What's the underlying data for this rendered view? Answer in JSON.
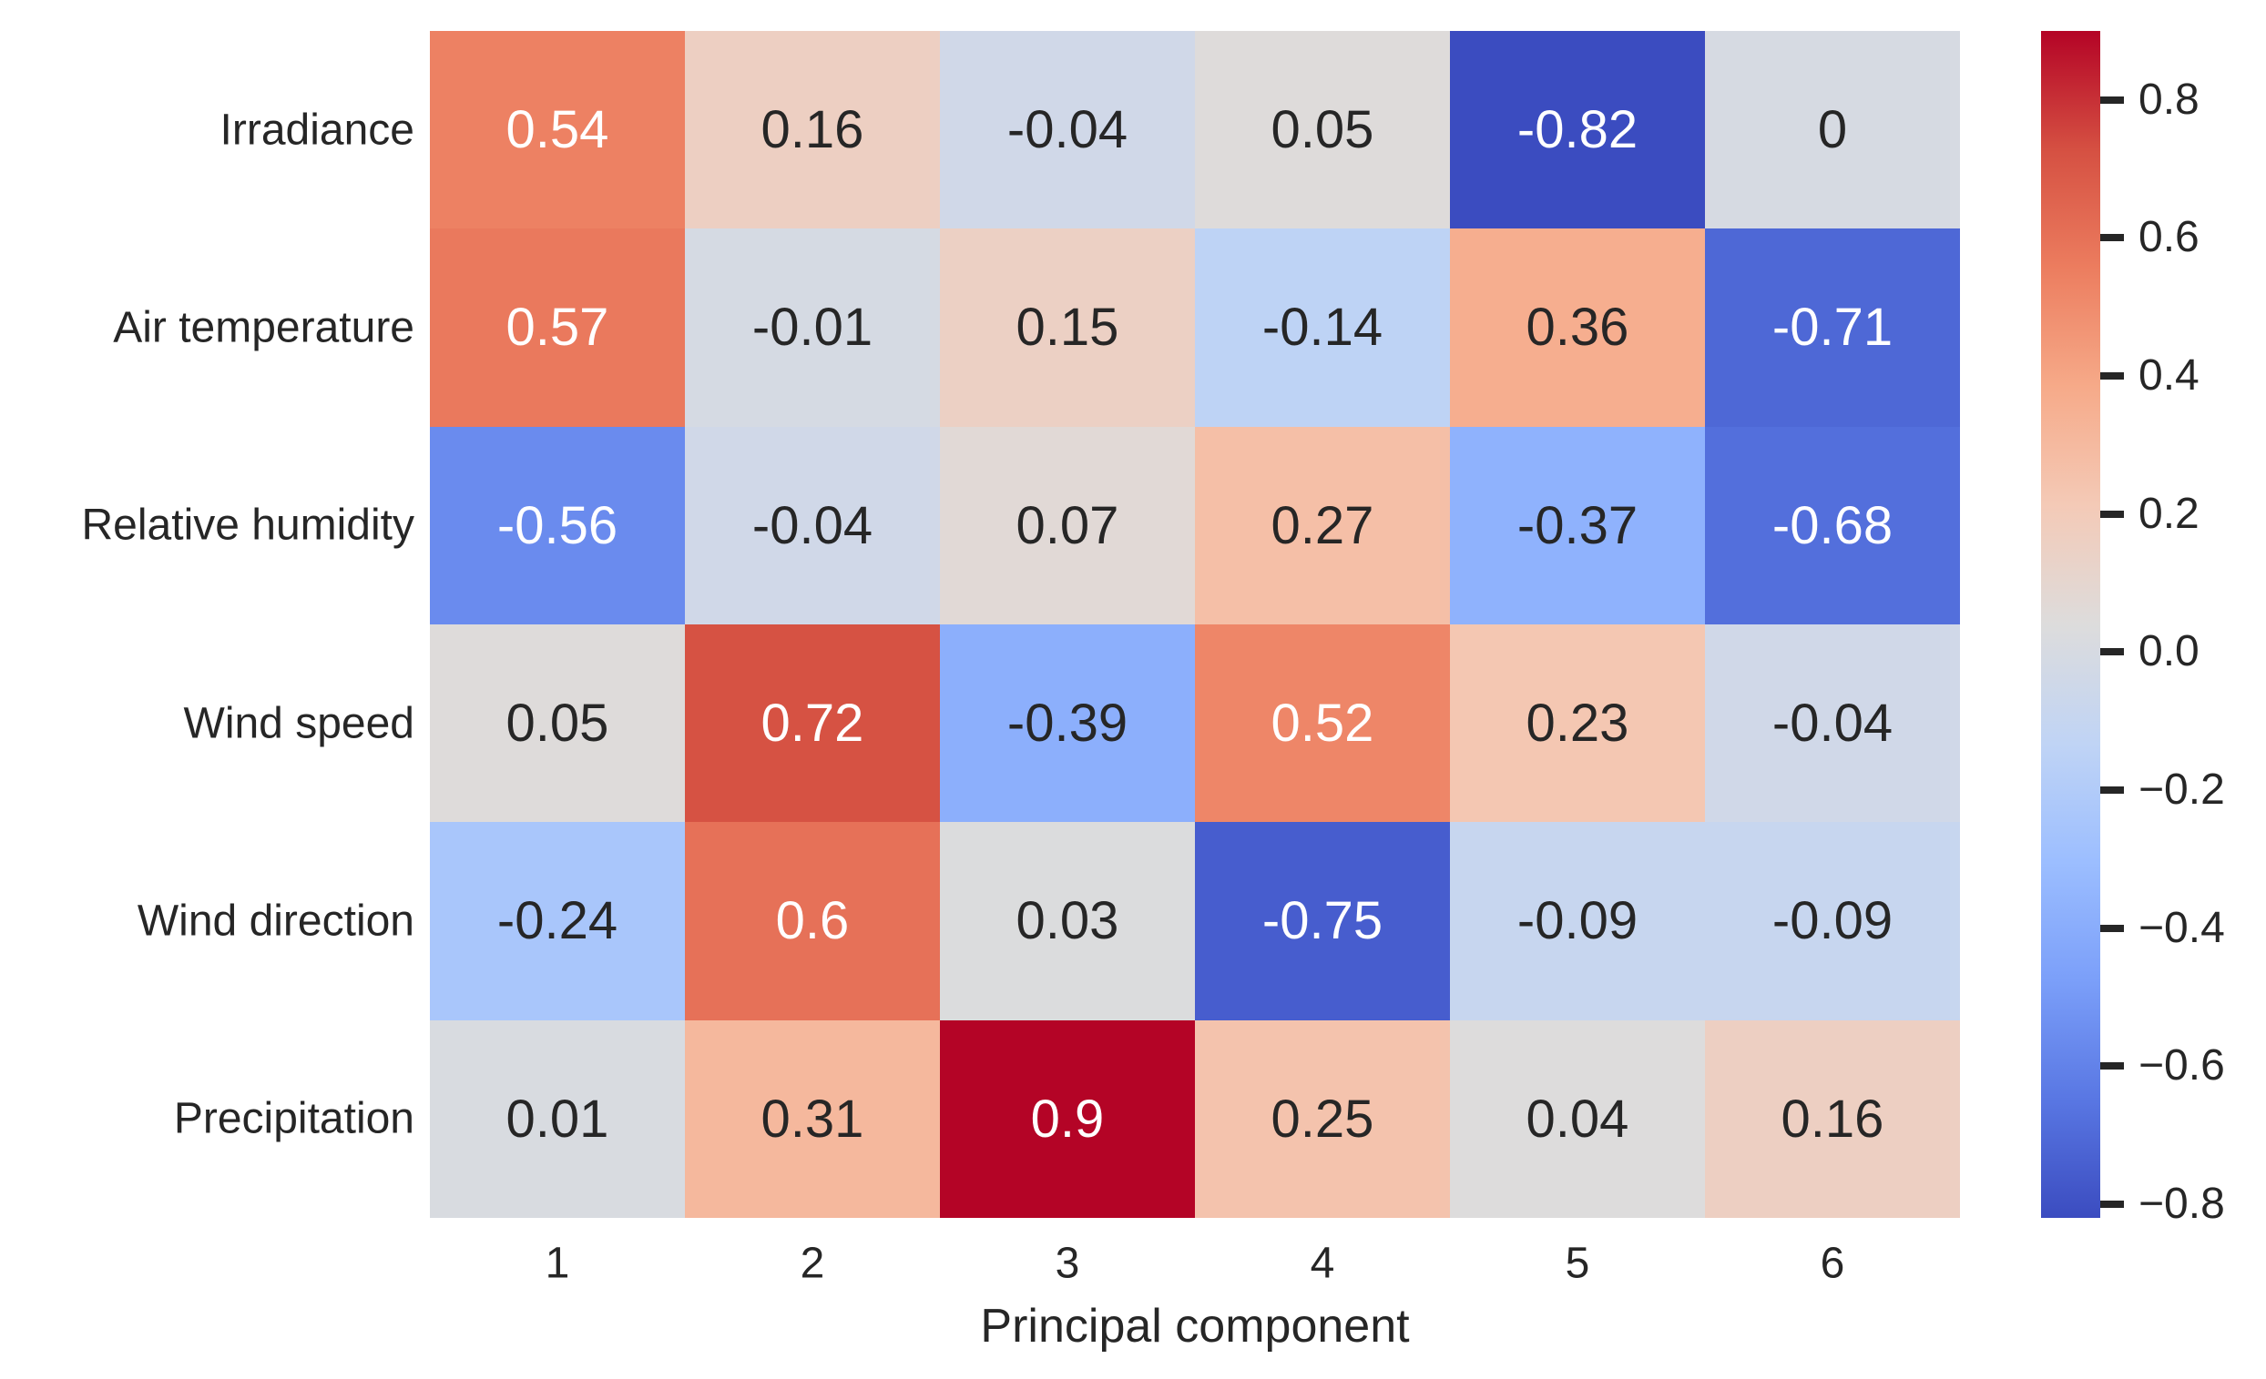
{
  "chart_data": {
    "type": "heatmap",
    "title": "",
    "xlabel": "Principal component",
    "ylabel": "",
    "x_tick_labels": [
      "1",
      "2",
      "3",
      "4",
      "5",
      "6"
    ],
    "y_tick_labels": [
      "Irradiance",
      "Air temperature",
      "Relative humidity",
      "Wind speed",
      "Wind direction",
      "Precipitation"
    ],
    "values": [
      [
        0.54,
        0.16,
        -0.04,
        0.05,
        -0.82,
        0
      ],
      [
        0.57,
        -0.01,
        0.15,
        -0.14,
        0.36,
        -0.71
      ],
      [
        -0.56,
        -0.04,
        0.07,
        0.27,
        -0.37,
        -0.68
      ],
      [
        0.05,
        0.72,
        -0.39,
        0.52,
        0.23,
        -0.04
      ],
      [
        -0.24,
        0.6,
        0.03,
        -0.75,
        -0.09,
        -0.09
      ],
      [
        0.01,
        0.31,
        0.9,
        0.25,
        0.04,
        0.16
      ]
    ],
    "cell_labels": [
      [
        "0.54",
        "0.16",
        "-0.04",
        "0.05",
        "-0.82",
        "0"
      ],
      [
        "0.57",
        "-0.01",
        "0.15",
        "-0.14",
        "0.36",
        "-0.71"
      ],
      [
        "-0.56",
        "-0.04",
        "0.07",
        "0.27",
        "-0.37",
        "-0.68"
      ],
      [
        "0.05",
        "0.72",
        "-0.39",
        "0.52",
        "0.23",
        "-0.04"
      ],
      [
        "-0.24",
        "0.6",
        "0.03",
        "-0.75",
        "-0.09",
        "-0.09"
      ],
      [
        "0.01",
        "0.31",
        "0.9",
        "0.25",
        "0.04",
        "0.16"
      ]
    ],
    "colormap": "coolwarm",
    "vmin": -0.82,
    "vmax": 0.9,
    "grid": false,
    "legend_position": "colorbar-right",
    "colorbar": {
      "tick_values": [
        0.8,
        0.6,
        0.4,
        0.2,
        0.0,
        -0.2,
        -0.4,
        -0.6,
        -0.8
      ],
      "tick_labels": [
        "0.8",
        "0.6",
        "0.4",
        "0.2",
        "0.0",
        "−0.2",
        "−0.4",
        "−0.6",
        "−0.8"
      ]
    }
  },
  "colors": {
    "background": "#ffffff",
    "tick_label": "#262626",
    "annotation_dark": "#262626",
    "annotation_light": "#ffffff",
    "coolwarm_stops": [
      "#3b4cc0",
      "#5977e3",
      "#7b9ff9",
      "#9cbeff",
      "#c0d4f5",
      "#dddcdc",
      "#f4cab7",
      "#f6aa89",
      "#ec7d5f",
      "#d55042",
      "#b40426"
    ]
  }
}
